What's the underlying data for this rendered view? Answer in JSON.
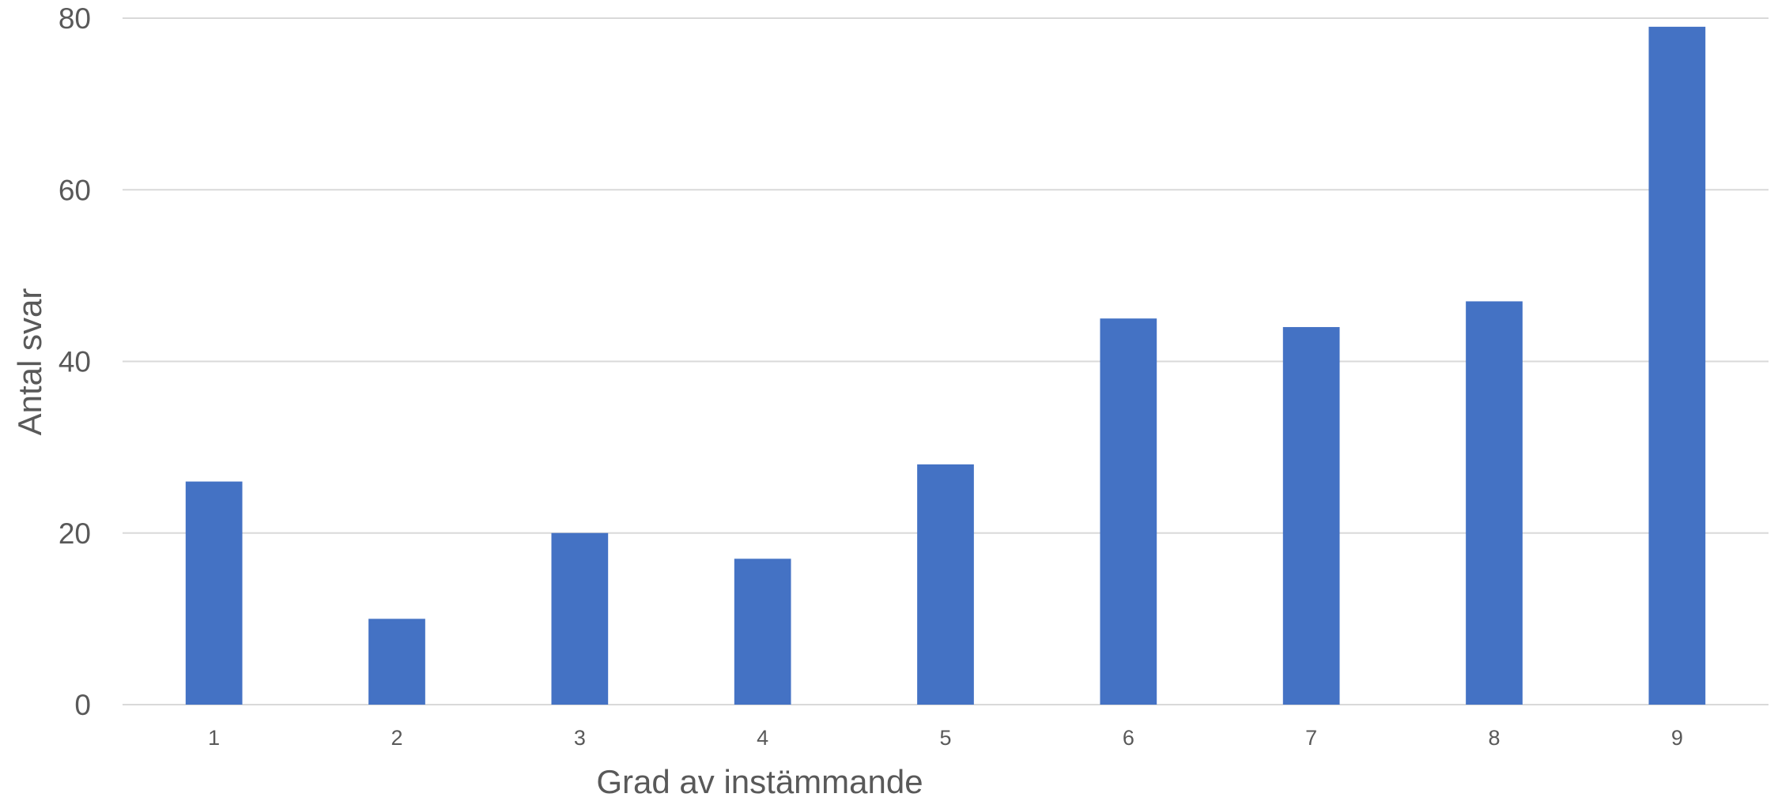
{
  "chart_data": {
    "type": "bar",
    "title": "",
    "xlabel": "Grad av instämmande",
    "ylabel": "Antal svar",
    "categories": [
      "1",
      "2",
      "3",
      "4",
      "5",
      "6",
      "7",
      "8",
      "9"
    ],
    "values": [
      26,
      10,
      20,
      17,
      28,
      45,
      44,
      47,
      79
    ],
    "ylim": [
      0,
      80
    ],
    "yticks": [
      0,
      20,
      40,
      60,
      80
    ],
    "grid": true,
    "legend": "none",
    "bar_color": "#4472c4",
    "grid_color": "#d9d9d9",
    "text_color": "#595959"
  }
}
